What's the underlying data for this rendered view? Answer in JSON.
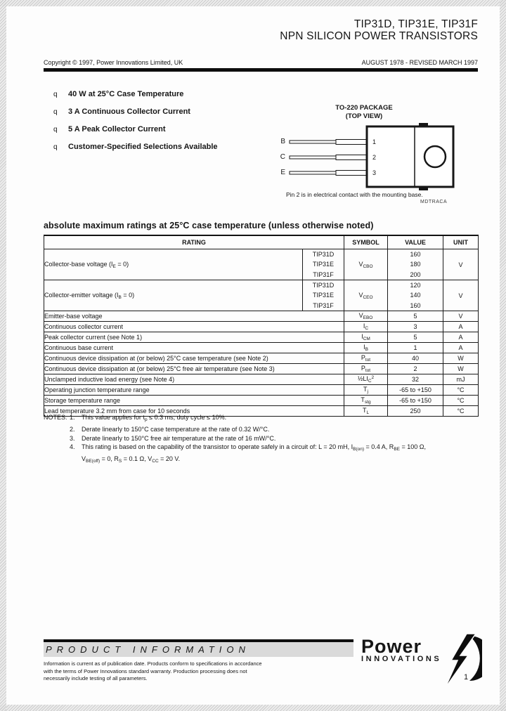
{
  "header": {
    "part_numbers": "TIP31D, TIP31E, TIP31F",
    "subtitle": "NPN SILICON POWER TRANSISTORS",
    "copyright": "Copyright © 1997, Power Innovations Limited, UK",
    "revision": "AUGUST 1978 - REVISED MARCH 1997"
  },
  "features": {
    "bullet_char": "q",
    "items": [
      "40 W at 25°C Case Temperature",
      "3 A Continuous Collector Current",
      "5 A Peak Collector Current",
      "Customer-Specified Selections Available"
    ]
  },
  "package": {
    "title": "TO-220 PACKAGE",
    "view": "(TOP VIEW)",
    "pin_letters": [
      "B",
      "C",
      "E"
    ],
    "pin_numbers": [
      "1",
      "2",
      "3"
    ],
    "caption": "Pin 2 is in electrical contact with the mounting base.",
    "drawing_code": "MDTRACA"
  },
  "ratings_table": {
    "title": "absolute maximum ratings at 25°C case temperature (unless otherwise noted)",
    "headers": {
      "rating": "RATING",
      "symbol": "SYMBOL",
      "value": "VALUE",
      "unit": "UNIT"
    },
    "multi_rows": [
      {
        "rating": "Collector-base voltage (I~E~ = 0)",
        "devices": [
          "TIP31D",
          "TIP31E",
          "TIP31F"
        ],
        "symbol": "V~CBO~",
        "values": [
          "160",
          "180",
          "200"
        ],
        "unit": "V"
      },
      {
        "rating": "Collector-emitter voltage (I~B~ = 0)",
        "devices": [
          "TIP31D",
          "TIP31E",
          "TIP31F"
        ],
        "symbol": "V~CEO~",
        "values": [
          "120",
          "140",
          "160"
        ],
        "unit": "V"
      }
    ],
    "rows": [
      {
        "rating": "Emitter-base voltage",
        "symbol": "V~EBO~",
        "value": "5",
        "unit": "V"
      },
      {
        "rating": "Continuous collector current",
        "symbol": "I~C~",
        "value": "3",
        "unit": "A"
      },
      {
        "rating": "Peak collector current (see Note 1)",
        "symbol": "I~CM~",
        "value": "5",
        "unit": "A"
      },
      {
        "rating": "Continuous base current",
        "symbol": "I~B~",
        "value": "1",
        "unit": "A"
      },
      {
        "rating": "Continuous device dissipation at (or below) 25°C case temperature (see Note 2)",
        "symbol": "P~tot~",
        "value": "40",
        "unit": "W"
      },
      {
        "rating": "Continuous device dissipation at (or below) 25°C free air temperature (see Note 3)",
        "symbol": "P~tot~",
        "value": "2",
        "unit": "W"
      },
      {
        "rating": "Unclamped inductive load energy (see Note 4)",
        "symbol": "½LI~C~^2^",
        "value": "32",
        "unit": "mJ"
      },
      {
        "rating": "Operating junction temperature range",
        "symbol": "T~j~",
        "value": "-65 to +150",
        "unit": "°C"
      },
      {
        "rating": "Storage temperature range",
        "symbol": "T~stg~",
        "value": "-65 to +150",
        "unit": "°C"
      },
      {
        "rating": "Lead temperature 3.2 mm from case for 10 seconds",
        "symbol": "T~L~",
        "value": "250",
        "unit": "°C"
      }
    ]
  },
  "notes": {
    "label": "NOTES:",
    "items": [
      {
        "num": "1.",
        "text": "This value applies for t~p~ ≤ 0.3 ms, duty cycle ≤ 10%."
      },
      {
        "num": "2.",
        "text": "Derate linearly to 150°C  case temperature at the rate of 0.32 W/°C."
      },
      {
        "num": "3.",
        "text": "Derate linearly to 150°C  free air temperature at the rate of 16 mW/°C."
      },
      {
        "num": "4.",
        "text": "This rating is based on the capability of the transistor to operate safely in a circuit of: L = 20 mH, I~B(on)~ = 0.4 A, R~BE~ = 100 Ω,"
      },
      {
        "num": "",
        "text": "V~BE(off)~ = 0, R~S~ = 0.1 Ω, V~CC~ = 20 V."
      }
    ]
  },
  "footer": {
    "product_information": "PRODUCT INFORMATION",
    "disclaimer": "Information is current as of publication date. Products conform to specifications in accordance with the terms of Power Innovations standard warranty. Production processing does not necessarily include testing of all parameters.",
    "logo_line1": "Power",
    "logo_line2": "INNOVATIONS",
    "page_number": "1"
  },
  "colors": {
    "ink": "#161616",
    "bar": "#0d0d0d",
    "strip": "#dadada"
  }
}
